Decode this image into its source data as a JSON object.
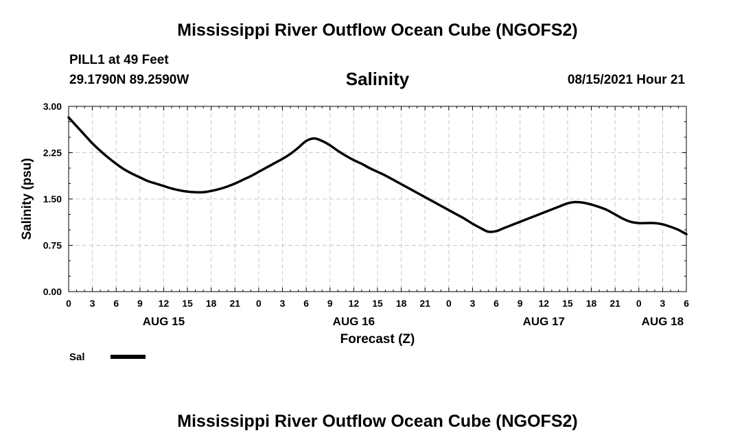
{
  "header": {
    "title": "Mississippi River Outflow Ocean Cube (NGOFS2)",
    "station": "PILL1 at 49 Feet",
    "coords": "29.1790N  89.2590W",
    "variable": "Salinity",
    "datetime": "08/15/2021 Hour 21"
  },
  "footer": {
    "title": "Mississippi River Outflow Ocean Cube (NGOFS2)"
  },
  "colors": {
    "line": "#000000",
    "grid": "#c8c8c8",
    "axis": "#000000",
    "background": "#ffffff"
  },
  "chart_data": {
    "type": "line",
    "title": "Salinity",
    "xlabel": "Forecast (Z)",
    "ylabel": "Salinity (psu)",
    "xlim": [
      0,
      78
    ],
    "ylim": [
      0,
      3
    ],
    "grid": true,
    "x_ticks": [
      0,
      3,
      6,
      9,
      12,
      15,
      18,
      21,
      24,
      27,
      30,
      33,
      36,
      39,
      42,
      45,
      48,
      51,
      54,
      57,
      60,
      63,
      66,
      69,
      72,
      75,
      78
    ],
    "x_tick_labels": [
      "0",
      "3",
      "6",
      "9",
      "12",
      "15",
      "18",
      "21",
      "0",
      "3",
      "6",
      "9",
      "12",
      "15",
      "18",
      "21",
      "0",
      "3",
      "6",
      "9",
      "12",
      "15",
      "18",
      "21",
      "0",
      "3",
      "6"
    ],
    "y_ticks": [
      0,
      0.75,
      1.5,
      2.25,
      3.0
    ],
    "y_tick_labels": [
      "0.00",
      "0.75",
      "1.50",
      "2.25",
      "3.00"
    ],
    "date_labels": [
      {
        "x": 12,
        "label": "AUG 15"
      },
      {
        "x": 36,
        "label": "AUG 16"
      },
      {
        "x": 60,
        "label": "AUG 17"
      },
      {
        "x": 75,
        "label": "AUG 18"
      }
    ],
    "legend": {
      "label": "Sal",
      "placement": "bottom-left"
    },
    "series": [
      {
        "name": "Sal",
        "x": [
          0,
          1,
          2,
          3,
          4,
          5,
          6,
          7,
          8,
          9,
          10,
          11,
          12,
          13,
          14,
          15,
          16,
          17,
          18,
          19,
          20,
          21,
          22,
          23,
          24,
          25,
          26,
          27,
          28,
          29,
          30,
          31,
          32,
          33,
          34,
          35,
          36,
          37,
          38,
          39,
          40,
          41,
          42,
          43,
          44,
          45,
          46,
          47,
          48,
          49,
          50,
          51,
          52,
          53,
          54,
          55,
          56,
          57,
          58,
          59,
          60,
          61,
          62,
          63,
          64,
          65,
          66,
          67,
          68,
          69,
          70,
          71,
          72,
          73,
          74,
          75,
          76,
          77,
          78
        ],
        "values": [
          2.82,
          2.68,
          2.54,
          2.4,
          2.28,
          2.17,
          2.07,
          1.98,
          1.91,
          1.85,
          1.79,
          1.75,
          1.71,
          1.67,
          1.64,
          1.62,
          1.61,
          1.61,
          1.63,
          1.66,
          1.7,
          1.75,
          1.81,
          1.87,
          1.94,
          2.01,
          2.08,
          2.15,
          2.23,
          2.33,
          2.44,
          2.48,
          2.44,
          2.37,
          2.28,
          2.2,
          2.13,
          2.07,
          2.0,
          1.94,
          1.88,
          1.81,
          1.74,
          1.67,
          1.6,
          1.53,
          1.46,
          1.39,
          1.32,
          1.25,
          1.18,
          1.1,
          1.03,
          0.97,
          0.98,
          1.03,
          1.08,
          1.13,
          1.18,
          1.23,
          1.28,
          1.33,
          1.38,
          1.43,
          1.45,
          1.44,
          1.41,
          1.37,
          1.32,
          1.25,
          1.18,
          1.13,
          1.11,
          1.11,
          1.11,
          1.09,
          1.05,
          1.0,
          0.93
        ]
      }
    ]
  }
}
